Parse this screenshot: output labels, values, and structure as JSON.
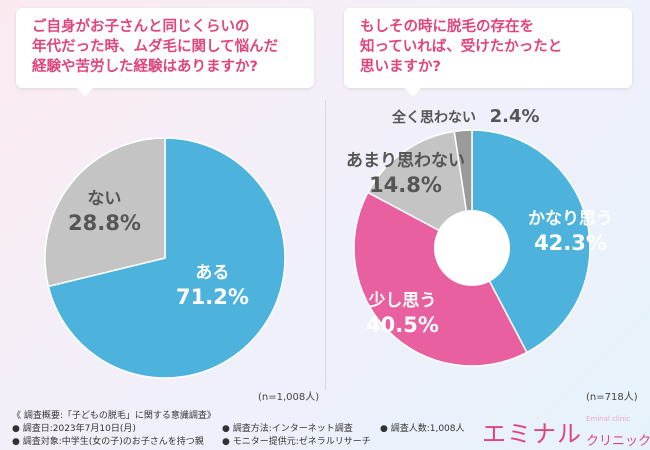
{
  "question_left": {
    "lines": [
      "ご自身がお子さんと同じくらいの",
      "年代だった時、ムダ毛に関して悩んだ",
      "経験や苦労した経験はありますか?"
    ]
  },
  "question_right": {
    "lines": [
      "もしその時に脱毛の存在を",
      "知っていれば、受けたかったと",
      "思いますか?"
    ]
  },
  "chart_data": [
    {
      "type": "pie",
      "title": "ご自身がお子さんと同じくらいの年代だった時、ムダ毛に関して悩んだ経験や苦労した経験はありますか?",
      "categories": [
        "ある",
        "ない"
      ],
      "values": [
        71.2,
        28.8
      ],
      "value_labels": [
        "71.2%",
        "28.8%"
      ],
      "colors": [
        "#4db3dc",
        "#c4c4c4"
      ],
      "n_label": "(n=1,008人)"
    },
    {
      "type": "pie",
      "title": "もしその時に脱毛の存在を知っていれば、受けたかったと思いますか?",
      "donut": true,
      "categories": [
        "かなり思う",
        "少し思う",
        "あまり思わない",
        "全く思わない"
      ],
      "values": [
        42.3,
        40.5,
        14.8,
        2.4
      ],
      "value_labels": [
        "42.3%",
        "40.5%",
        "14.8%",
        "2.4%"
      ],
      "colors": [
        "#4db3dc",
        "#e8609f",
        "#c4c4c4",
        "#9a9a9a"
      ],
      "n_label": "(n=718人)"
    }
  ],
  "footer": {
    "title": "《 調査概要:「子どもの脱毛」に関する意識調査》",
    "items": [
      "● 調査日:2023年7月10日(月)",
      "● 調査方法:インターネット調査",
      "● 調査人数:1,008人",
      "● 調査対象:中学生(女の子)のお子さんを持つ親",
      "● モニター提供元:ゼネラルリサーチ"
    ]
  },
  "brand": {
    "main": "エミナル",
    "sub": "クリニック",
    "en": "Eminal clinic"
  }
}
